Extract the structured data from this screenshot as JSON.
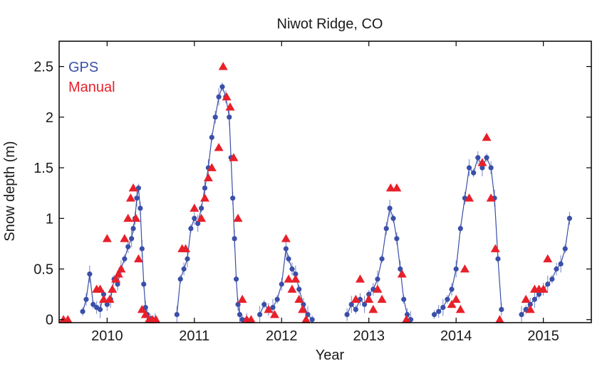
{
  "chart_data": {
    "type": "scatter",
    "title": "Niwot Ridge, CO",
    "xlabel": "Year",
    "ylabel": "Snow depth (m)",
    "xlim": [
      2009.45,
      2015.55
    ],
    "ylim": [
      -0.03,
      2.75
    ],
    "x_ticks": [
      2010,
      2011,
      2012,
      2013,
      2014,
      2015
    ],
    "x_tick_labels": [
      "2010",
      "2011",
      "2012",
      "2013",
      "2014",
      "2015"
    ],
    "y_ticks": [
      0,
      0.5,
      1,
      1.5,
      2,
      2.5
    ],
    "y_tick_labels": [
      "0",
      "0.5",
      "1",
      "1.5",
      "2",
      "2.5"
    ],
    "legend": {
      "position": "top-left",
      "entries": [
        "GPS",
        "Manual"
      ]
    },
    "colors": {
      "GPS": "#3a4fa8",
      "Manual": "#e8202a"
    },
    "series": [
      {
        "name": "GPS",
        "marker": "circle",
        "with_error_bars": true,
        "x": [
          2009.72,
          2009.76,
          2009.8,
          2009.84,
          2009.88,
          2009.92,
          2009.96,
          2010.0,
          2010.04,
          2010.08,
          2010.12,
          2010.16,
          2010.2,
          2010.24,
          2010.28,
          2010.3,
          2010.32,
          2010.34,
          2010.36,
          2010.38,
          2010.4,
          2010.42,
          2010.44,
          2010.46,
          2010.5,
          2010.55,
          2010.8,
          2010.84,
          2010.88,
          2010.92,
          2010.96,
          2011.0,
          2011.04,
          2011.08,
          2011.12,
          2011.16,
          2011.2,
          2011.24,
          2011.28,
          2011.32,
          2011.36,
          2011.4,
          2011.42,
          2011.44,
          2011.46,
          2011.48,
          2011.5,
          2011.52,
          2011.55,
          2011.6,
          2011.75,
          2011.8,
          2011.85,
          2011.9,
          2011.95,
          2012.0,
          2012.05,
          2012.08,
          2012.12,
          2012.16,
          2012.2,
          2012.25,
          2012.3,
          2012.35,
          2012.75,
          2012.8,
          2012.85,
          2012.9,
          2012.95,
          2013.0,
          2013.05,
          2013.1,
          2013.15,
          2013.2,
          2013.24,
          2013.28,
          2013.32,
          2013.36,
          2013.4,
          2013.44,
          2013.48,
          2013.75,
          2013.8,
          2013.85,
          2013.9,
          2013.95,
          2014.0,
          2014.05,
          2014.1,
          2014.15,
          2014.2,
          2014.25,
          2014.3,
          2014.35,
          2014.4,
          2014.44,
          2014.48,
          2014.52,
          2014.75,
          2014.8,
          2014.85,
          2014.9,
          2014.95,
          2015.0,
          2015.05,
          2015.1,
          2015.15,
          2015.2,
          2015.25,
          2015.3
        ],
        "y": [
          0.08,
          0.2,
          0.45,
          0.15,
          0.12,
          0.1,
          0.25,
          0.15,
          0.2,
          0.4,
          0.35,
          0.5,
          0.6,
          0.72,
          0.8,
          0.9,
          1.0,
          1.2,
          1.3,
          1.1,
          0.7,
          0.35,
          0.12,
          0.05,
          0.01,
          0,
          0.05,
          0.4,
          0.5,
          0.6,
          0.9,
          1.0,
          0.95,
          1.1,
          1.3,
          1.5,
          1.8,
          2.0,
          2.2,
          2.3,
          2.2,
          2.0,
          1.6,
          1.2,
          0.8,
          0.4,
          0.15,
          0.05,
          0,
          0,
          0.05,
          0.15,
          0.1,
          0.12,
          0.2,
          0.35,
          0.7,
          0.6,
          0.5,
          0.45,
          0.3,
          0.15,
          0.05,
          0,
          0.05,
          0.15,
          0.1,
          0.2,
          0.15,
          0.25,
          0.3,
          0.4,
          0.6,
          0.9,
          1.1,
          1.0,
          0.8,
          0.5,
          0.2,
          0.05,
          0,
          0.05,
          0.08,
          0.12,
          0.2,
          0.3,
          0.5,
          0.9,
          1.2,
          1.5,
          1.45,
          1.6,
          1.5,
          1.6,
          1.5,
          1.2,
          0.6,
          0.1,
          0.05,
          0.1,
          0.15,
          0.2,
          0.25,
          0.3,
          0.35,
          0.4,
          0.5,
          0.55,
          0.7,
          1.0
        ]
      },
      {
        "name": "Manual",
        "marker": "triangle",
        "x": [
          2009.5,
          2009.55,
          2009.88,
          2009.92,
          2009.96,
          2010.0,
          2010.03,
          2010.06,
          2010.1,
          2010.13,
          2010.16,
          2010.2,
          2010.24,
          2010.27,
          2010.3,
          2010.33,
          2010.36,
          2010.4,
          2010.44,
          2010.48,
          2010.52,
          2010.56,
          2010.86,
          2010.9,
          2011.0,
          2011.08,
          2011.12,
          2011.16,
          2011.2,
          2011.28,
          2011.33,
          2011.37,
          2011.41,
          2011.45,
          2011.5,
          2011.55,
          2011.6,
          2011.65,
          2011.85,
          2011.92,
          2012.05,
          2012.08,
          2012.12,
          2012.16,
          2012.2,
          2012.24,
          2012.28,
          2012.85,
          2012.9,
          2013.0,
          2013.05,
          2013.1,
          2013.15,
          2013.25,
          2013.32,
          2013.38,
          2013.43,
          2013.95,
          2014.0,
          2014.05,
          2014.1,
          2014.15,
          2014.3,
          2014.35,
          2014.4,
          2014.45,
          2014.5,
          2014.8,
          2014.85,
          2014.9,
          2014.95,
          2015.0,
          2015.05
        ],
        "y": [
          0,
          0,
          0.3,
          0.3,
          0.2,
          0.8,
          0.2,
          0.3,
          0.4,
          0.45,
          0.5,
          0.8,
          1.0,
          1.2,
          1.3,
          1.0,
          0.6,
          0.1,
          0.05,
          0,
          0,
          0,
          0.7,
          0.7,
          1.1,
          1.0,
          1.2,
          1.4,
          1.5,
          1.7,
          2.5,
          2.2,
          2.1,
          1.6,
          1.0,
          0.2,
          0,
          0,
          0.1,
          0.05,
          0.8,
          0.4,
          0.3,
          0.4,
          0.2,
          0.1,
          0,
          0.2,
          0.4,
          0.2,
          0.1,
          0.3,
          0.2,
          1.3,
          1.3,
          0.45,
          0,
          0.15,
          0.2,
          0.1,
          0.5,
          1.2,
          1.55,
          1.8,
          1.2,
          0.7,
          0,
          0.2,
          0.1,
          0.3,
          0.3,
          0.3,
          0.6
        ]
      }
    ]
  }
}
